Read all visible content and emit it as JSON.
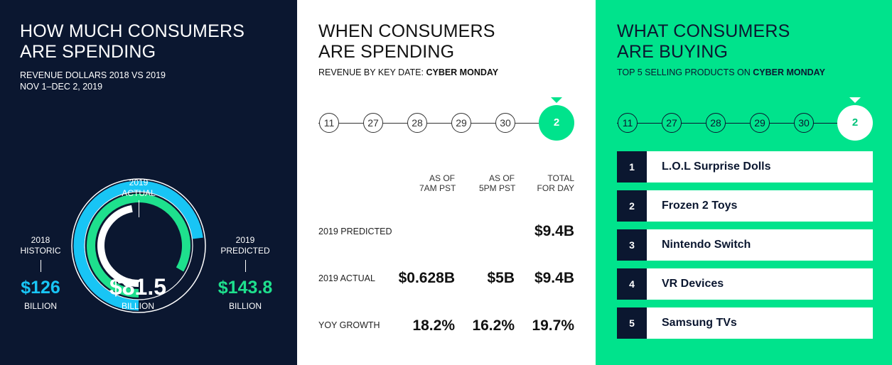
{
  "panel_spending": {
    "title_line1": "HOW MUCH CONSUMERS",
    "title_line2": "ARE SPENDING",
    "subtitle_line1": "REVENUE DOLLARS 2018 VS 2019",
    "subtitle_line2": "NOV 1–DEC 2, 2019",
    "center_label_line1": "2019",
    "center_label_line2": "ACTUAL",
    "historic_label_line1": "2018",
    "historic_label_line2": "HISTORIC",
    "historic_value": "$126",
    "historic_unit": "BILLION",
    "actual_value": "$81.5",
    "actual_unit": "BILLION",
    "predicted_label_line1": "2019",
    "predicted_label_line2": "PREDICTED",
    "predicted_value": "$143.8",
    "predicted_unit": "BILLION",
    "colors": {
      "background": "#0b1730",
      "historic": "#18c5f5",
      "predicted": "#1ee08d",
      "actual": "#ffffff"
    }
  },
  "panel_when": {
    "title_line1": "WHEN CONSUMERS",
    "title_line2": "ARE SPENDING",
    "subtitle_prefix": "REVENUE BY KEY DATE: ",
    "subtitle_bold": "CYBER MONDAY",
    "timeline": [
      "11",
      "27",
      "28",
      "29",
      "30",
      "2"
    ],
    "columns": [
      {
        "line1": "AS OF",
        "line2": "7AM PST"
      },
      {
        "line1": "AS OF",
        "line2": "5PM PST"
      },
      {
        "line1": "TOTAL",
        "line2": "FOR DAY"
      }
    ],
    "rows": [
      {
        "label": "2019 PREDICTED",
        "values": [
          "",
          "",
          "$9.4B"
        ]
      },
      {
        "label": "2019 ACTUAL",
        "values": [
          "$0.628B",
          "$5B",
          "$9.4B"
        ]
      },
      {
        "label": "YOY GROWTH",
        "values": [
          "18.2%",
          "16.2%",
          "19.7%"
        ]
      }
    ]
  },
  "panel_buying": {
    "title_line1": "WHAT CONSUMERS",
    "title_line2": "ARE BUYING",
    "subtitle_prefix": "TOP 5 SELLING PRODUCTS ON ",
    "subtitle_bold": "CYBER MONDAY",
    "timeline": [
      "11",
      "27",
      "28",
      "29",
      "30",
      "2"
    ],
    "products": [
      {
        "rank": "1",
        "name": "L.O.L Surprise Dolls"
      },
      {
        "rank": "2",
        "name": "Frozen 2 Toys"
      },
      {
        "rank": "3",
        "name": "Nintendo Switch"
      },
      {
        "rank": "4",
        "name": "VR Devices"
      },
      {
        "rank": "5",
        "name": "Samsung TVs"
      }
    ]
  },
  "chart_data": [
    {
      "type": "radial-bar",
      "title": "HOW MUCH CONSUMERS ARE SPENDING",
      "subtitle": "REVENUE DOLLARS 2018 VS 2019 — NOV 1–DEC 2, 2019",
      "unit": "BILLION",
      "series": [
        {
          "name": "2018 HISTORIC",
          "value": 126
        },
        {
          "name": "2019 PREDICTED",
          "value": 143.8
        },
        {
          "name": "2019 ACTUAL",
          "value": 81.5
        }
      ],
      "max": 143.8
    },
    {
      "type": "table",
      "title": "WHEN CONSUMERS ARE SPENDING",
      "subtitle": "REVENUE BY KEY DATE: CYBER MONDAY",
      "columns": [
        "AS OF 7AM PST",
        "AS OF 5PM PST",
        "TOTAL FOR DAY"
      ],
      "rows": [
        {
          "label": "2019 PREDICTED",
          "values": [
            "",
            "",
            "$9.4B"
          ]
        },
        {
          "label": "2019 ACTUAL",
          "values": [
            "$0.628B",
            "$5B",
            "$9.4B"
          ]
        },
        {
          "label": "YOY GROWTH",
          "values": [
            "18.2%",
            "16.2%",
            "19.7%"
          ]
        }
      ]
    },
    {
      "type": "table",
      "title": "WHAT CONSUMERS ARE BUYING",
      "subtitle": "TOP 5 SELLING PRODUCTS ON CYBER MONDAY",
      "rows": [
        "L.O.L Surprise Dolls",
        "Frozen 2 Toys",
        "Nintendo Switch",
        "VR Devices",
        "Samsung TVs"
      ]
    }
  ]
}
